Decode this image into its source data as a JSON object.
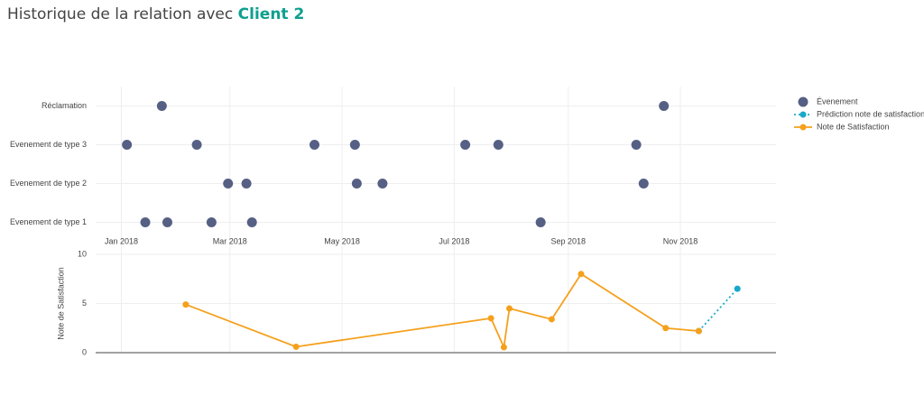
{
  "header": {
    "title": "Historique de la relation avec",
    "client": "Client 2"
  },
  "chart_data": [
    {
      "type": "scatter",
      "categories": [
        "Evenement de type 1",
        "Evenement de type 2",
        "Evenement de type 3",
        "Réclamation"
      ],
      "xlim": [
        "2017-12-18",
        "2018-12-23"
      ],
      "xticks": [
        {
          "value": "2018-01-01",
          "label": "Jan 2018"
        },
        {
          "value": "2018-03-01",
          "label": "Mar 2018"
        },
        {
          "value": "2018-05-01",
          "label": "May 2018"
        },
        {
          "value": "2018-07-01",
          "label": "Jul 2018"
        },
        {
          "value": "2018-09-01",
          "label": "Sep 2018"
        },
        {
          "value": "2018-11-01",
          "label": "Nov 2018"
        }
      ],
      "grid": true,
      "series": [
        {
          "name": "Évenement",
          "color": "#566084",
          "x": [
            "2018-01-23",
            "2018-10-23",
            "2018-01-04",
            "2018-02-11",
            "2018-04-16",
            "2018-05-08",
            "2018-07-07",
            "2018-07-25",
            "2018-10-08",
            "2018-02-28",
            "2018-03-10",
            "2018-05-09",
            "2018-05-23",
            "2018-10-12",
            "2018-01-14",
            "2018-01-26",
            "2018-02-19",
            "2018-03-13",
            "2018-08-17"
          ],
          "values": [
            "Réclamation",
            "Réclamation",
            "Evenement de type 3",
            "Evenement de type 3",
            "Evenement de type 3",
            "Evenement de type 3",
            "Evenement de type 3",
            "Evenement de type 3",
            "Evenement de type 3",
            "Evenement de type 2",
            "Evenement de type 2",
            "Evenement de type 2",
            "Evenement de type 2",
            "Evenement de type 2",
            "Evenement de type 1",
            "Evenement de type 1",
            "Evenement de type 1",
            "Evenement de type 1",
            "Evenement de type 1"
          ]
        }
      ]
    },
    {
      "type": "line",
      "y_label": "Note de Satisfaction",
      "xlim": [
        "2017-12-18",
        "2018-12-23"
      ],
      "ylim": [
        0,
        10
      ],
      "yticks": [
        0,
        5,
        10
      ],
      "grid": true,
      "series": [
        {
          "name": "Prédiction note de satisfaction",
          "color": "#17a9c9",
          "dash": true,
          "x": [
            "2018-11-11",
            "2018-12-02"
          ],
          "values": [
            2.2,
            6.5
          ]
        },
        {
          "name": "Note de Satisfaction",
          "color": "#f5a01c",
          "dash": false,
          "x": [
            "2018-02-05",
            "2018-04-06",
            "2018-07-21",
            "2018-07-28",
            "2018-07-31",
            "2018-08-23",
            "2018-09-08",
            "2018-10-24",
            "2018-11-11"
          ],
          "values": [
            4.9,
            0.6,
            3.5,
            0.55,
            4.5,
            3.4,
            8.0,
            2.5,
            2.2
          ]
        }
      ]
    }
  ]
}
